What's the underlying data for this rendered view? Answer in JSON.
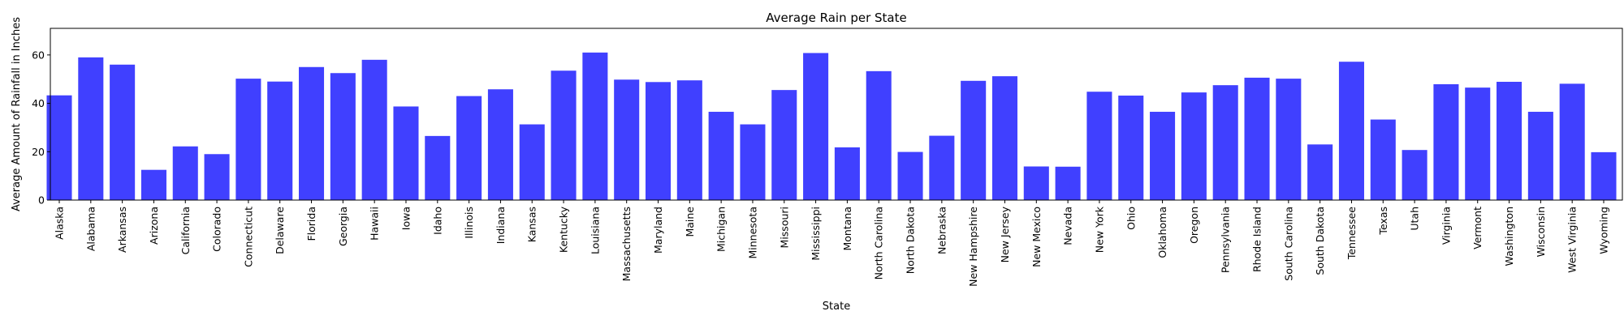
{
  "chart_data": {
    "type": "bar",
    "title": "Average Rain per State",
    "xlabel": "State",
    "ylabel": "Average Amount of Rainfall in Inches",
    "ylim": [
      0,
      71
    ],
    "yticks": [
      0,
      20,
      40,
      60
    ],
    "grid": false,
    "bar_color": "#4040ff",
    "categories": [
      "Alaska",
      "Alabama",
      "Arkansas",
      "Arizona",
      "California",
      "Colorado",
      "Connecticut",
      "Delaware",
      "Florida",
      "Georgia",
      "Hawaii",
      "Iowa",
      "Idaho",
      "Illinois",
      "Indiana",
      "Kansas",
      "Kentucky",
      "Louisiana",
      "Massachusetts",
      "Maryland",
      "Maine",
      "Michigan",
      "Minnesota",
      "Missouri",
      "Mississippi",
      "Montana",
      "North Carolina",
      "North Dakota",
      "Nebraska",
      "New Hampshire",
      "New Jersey",
      "New Mexico",
      "Nevada",
      "New York",
      "Ohio",
      "Oklahoma",
      "Oregon",
      "Pennsylvania",
      "Rhode Island",
      "South Carolina",
      "South Dakota",
      "Tennessee",
      "Texas",
      "Utah",
      "Virginia",
      "Vermont",
      "Washington",
      "Wisconsin",
      "West Virginia",
      "Wyoming"
    ],
    "values": [
      43.3,
      59.0,
      56.0,
      12.5,
      22.2,
      19.0,
      50.2,
      49.0,
      55.0,
      52.5,
      58.0,
      38.7,
      26.5,
      43.0,
      45.8,
      31.3,
      53.5,
      61.0,
      49.8,
      48.8,
      49.5,
      36.5,
      31.3,
      45.5,
      60.8,
      21.8,
      53.3,
      19.9,
      26.6,
      49.3,
      51.2,
      13.9,
      13.8,
      44.8,
      43.2,
      36.5,
      44.5,
      47.5,
      50.6,
      50.2,
      23.0,
      57.2,
      33.3,
      20.7,
      47.9,
      46.5,
      48.9,
      36.5,
      48.1,
      19.8
    ]
  }
}
